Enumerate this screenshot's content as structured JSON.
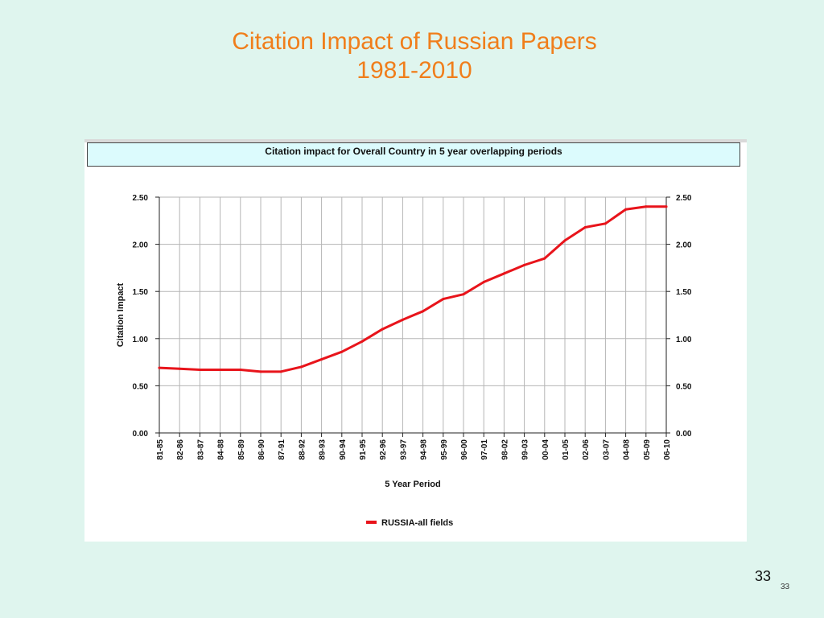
{
  "slide": {
    "title_line1": "Citation Impact of Russian Papers",
    "title_line2": "1981-2010",
    "page_number": "33",
    "page_number_small": "33"
  },
  "colors": {
    "title": "#f07e1b",
    "series_line": "#e8141b",
    "header_bg": "#dcfbfd",
    "slide_bg": "#dff5ee"
  },
  "chart_data": {
    "type": "line",
    "title": "Citation impact for Overall Country in 5 year overlapping periods",
    "xlabel": "5 Year Period",
    "ylabel": "Citation Impact",
    "ylim": [
      0,
      2.5
    ],
    "yticks": [
      "0.00",
      "0.50",
      "1.00",
      "1.50",
      "2.00",
      "2.50"
    ],
    "y_axis_both_sides": true,
    "grid": true,
    "legend_position": "bottom",
    "categories": [
      "81-85",
      "82-86",
      "83-87",
      "84-88",
      "85-89",
      "86-90",
      "87-91",
      "88-92",
      "89-93",
      "90-94",
      "91-95",
      "92-96",
      "93-97",
      "94-98",
      "95-99",
      "96-00",
      "97-01",
      "98-02",
      "99-03",
      "00-04",
      "01-05",
      "02-06",
      "03-07",
      "04-08",
      "05-09",
      "06-10"
    ],
    "series": [
      {
        "name": "RUSSIA-all fields",
        "color": "#e8141b",
        "values": [
          0.69,
          0.68,
          0.67,
          0.67,
          0.67,
          0.65,
          0.65,
          0.7,
          0.78,
          0.86,
          0.97,
          1.1,
          1.2,
          1.29,
          1.42,
          1.47,
          1.6,
          1.69,
          1.78,
          1.85,
          2.04,
          2.18,
          2.22,
          2.37,
          2.4,
          2.4
        ]
      }
    ]
  }
}
